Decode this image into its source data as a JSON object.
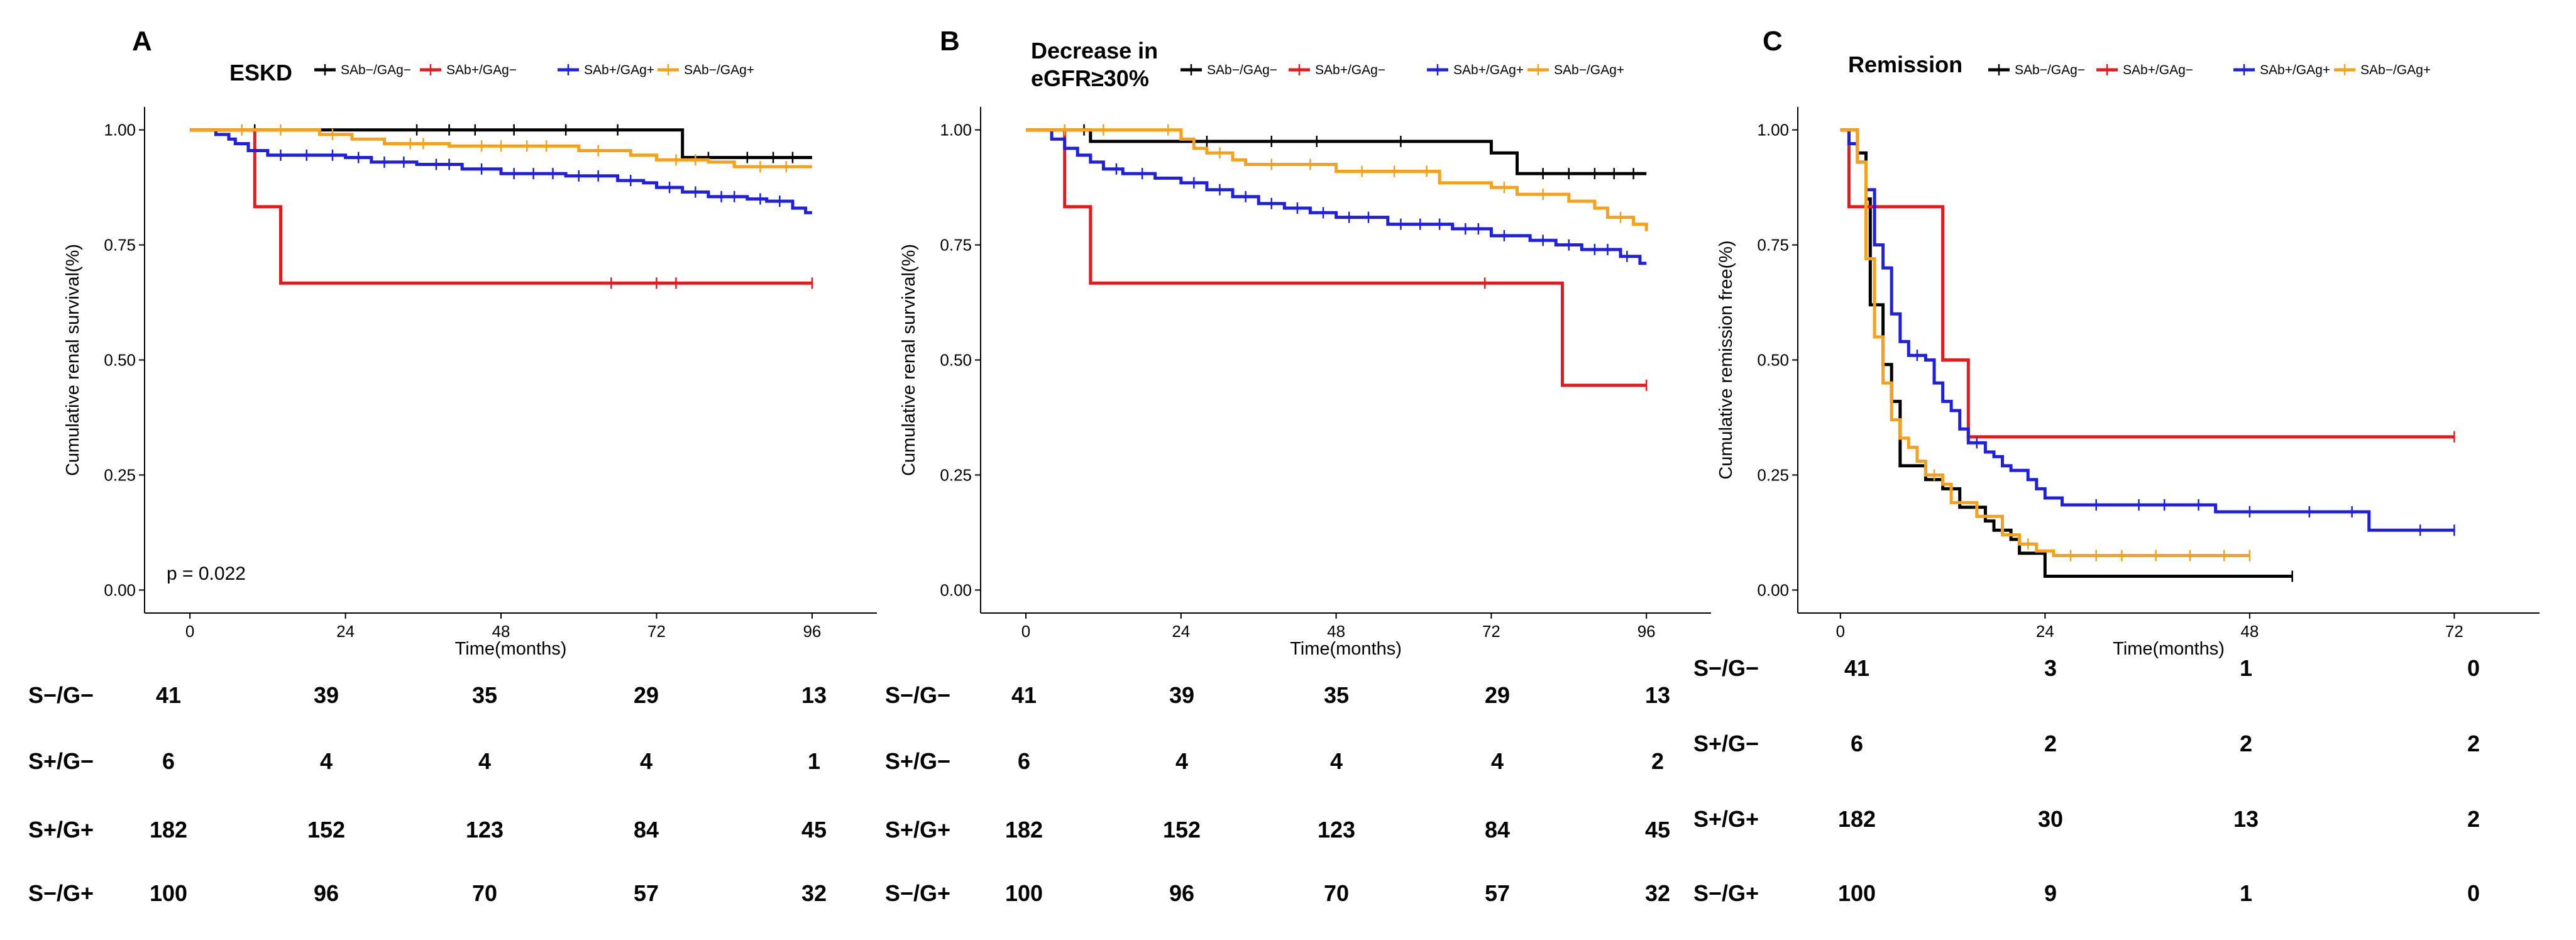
{
  "chart_data": [
    {
      "type": "line",
      "panel": "A",
      "title": "ESKD",
      "title_lines": [
        "ESKD"
      ],
      "xlabel": "Time(months)",
      "ylabel": "Cumulative renal survival(%)",
      "xlim": [
        -7,
        106
      ],
      "ylim": [
        -0.05,
        1.05
      ],
      "xticks": [
        0,
        24,
        48,
        72,
        96
      ],
      "yticks": [
        0.0,
        0.25,
        0.5,
        0.75,
        1.0
      ],
      "ytick_labels": [
        "0.00",
        "0.25",
        "0.50",
        "0.75",
        "1.00"
      ],
      "annotation": "p = 0.022",
      "legend": [
        "SAb−/GAg−",
        "SAb+/GAg−",
        "SAb+/GAg+",
        "SAb−/GAg+"
      ],
      "series": [
        {
          "name": "SAb−/GAg−",
          "color": "#000000",
          "steps": [
            [
              0,
              1.0
            ],
            [
              76,
              0.94
            ],
            [
              96,
              0.94
            ]
          ],
          "censor": [
            10,
            35,
            40,
            44,
            50,
            58,
            66,
            80,
            86,
            90,
            93
          ]
        },
        {
          "name": "SAb+/GAg−",
          "color": "#e41a1c",
          "steps": [
            [
              0,
              1.0
            ],
            [
              10,
              0.833
            ],
            [
              14,
              0.667
            ],
            [
              96,
              0.667
            ]
          ],
          "censor": [
            65,
            72,
            75,
            96
          ]
        },
        {
          "name": "SAb+/GAg+",
          "color": "#1f1fe0",
          "steps": [
            [
              0,
              1.0
            ],
            [
              4,
              0.99
            ],
            [
              6,
              0.98
            ],
            [
              7,
              0.97
            ],
            [
              9,
              0.955
            ],
            [
              12,
              0.945
            ],
            [
              24,
              0.94
            ],
            [
              28,
              0.93
            ],
            [
              35,
              0.925
            ],
            [
              42,
              0.915
            ],
            [
              48,
              0.905
            ],
            [
              58,
              0.9
            ],
            [
              66,
              0.89
            ],
            [
              70,
              0.885
            ],
            [
              72,
              0.875
            ],
            [
              76,
              0.865
            ],
            [
              80,
              0.855
            ],
            [
              86,
              0.85
            ],
            [
              89,
              0.845
            ],
            [
              93,
              0.83
            ],
            [
              95,
              0.82
            ],
            [
              96,
              0.82
            ]
          ],
          "censor": [
            14,
            18,
            22,
            26,
            30,
            33,
            38,
            40,
            45,
            50,
            53,
            56,
            60,
            63,
            68,
            74,
            78,
            82,
            84,
            88,
            91
          ]
        },
        {
          "name": "SAb−/GAg+",
          "color": "#f5a21a",
          "steps": [
            [
              0,
              1.0
            ],
            [
              20,
              0.99
            ],
            [
              25,
              0.98
            ],
            [
              30,
              0.97
            ],
            [
              40,
              0.965
            ],
            [
              60,
              0.955
            ],
            [
              68,
              0.945
            ],
            [
              72,
              0.935
            ],
            [
              80,
              0.93
            ],
            [
              84,
              0.92
            ],
            [
              96,
              0.92
            ]
          ],
          "censor": [
            8,
            14,
            22,
            34,
            36,
            45,
            48,
            52,
            55,
            63,
            75,
            78,
            88,
            92
          ]
        }
      ],
      "risk_table": [
        {
          "label": "S−/G−",
          "counts": [
            "41",
            "39",
            "35",
            "29",
            "13"
          ]
        },
        {
          "label": "S+/G−",
          "counts": [
            "6",
            "4",
            "4",
            "4",
            "1"
          ]
        },
        {
          "label": "S+/G+",
          "counts": [
            "182",
            "152",
            "123",
            "84",
            "45"
          ]
        },
        {
          "label": "S−/G+",
          "counts": [
            "100",
            "96",
            "70",
            "57",
            "32"
          ]
        }
      ]
    },
    {
      "type": "line",
      "panel": "B",
      "title": "Decrease in eGFR≥30%",
      "title_lines": [
        "Decrease in",
        "eGFR≥30%"
      ],
      "xlabel": "Time(months)",
      "ylabel": "Cumulative renal survival(%)",
      "xlim": [
        -7,
        106
      ],
      "ylim": [
        -0.05,
        1.05
      ],
      "xticks": [
        0,
        24,
        48,
        72,
        96
      ],
      "yticks": [
        0.0,
        0.25,
        0.5,
        0.75,
        1.0
      ],
      "ytick_labels": [
        "0.00",
        "0.25",
        "0.50",
        "0.75",
        "1.00"
      ],
      "annotation": "",
      "legend": [
        "SAb−/GAg−",
        "SAb+/GAg−",
        "SAb+/GAg+",
        "SAb−/GAg+"
      ],
      "series": [
        {
          "name": "SAb−/GAg−",
          "color": "#000000",
          "steps": [
            [
              0,
              1.0
            ],
            [
              10,
              0.975
            ],
            [
              72,
              0.95
            ],
            [
              76,
              0.905
            ],
            [
              96,
              0.905
            ]
          ],
          "censor": [
            9,
            28,
            38,
            45,
            58,
            80,
            84,
            88,
            91,
            94
          ]
        },
        {
          "name": "SAb+/GAg−",
          "color": "#e41a1c",
          "steps": [
            [
              0,
              1.0
            ],
            [
              6,
              0.833
            ],
            [
              10,
              0.667
            ],
            [
              83,
              0.445
            ],
            [
              96,
              0.445
            ]
          ],
          "censor": [
            71,
            96
          ]
        },
        {
          "name": "SAb+/GAg+",
          "color": "#1f1fe0",
          "steps": [
            [
              0,
              1.0
            ],
            [
              4,
              0.98
            ],
            [
              6,
              0.96
            ],
            [
              8,
              0.945
            ],
            [
              10,
              0.93
            ],
            [
              12,
              0.915
            ],
            [
              15,
              0.905
            ],
            [
              20,
              0.895
            ],
            [
              24,
              0.885
            ],
            [
              28,
              0.87
            ],
            [
              32,
              0.855
            ],
            [
              36,
              0.84
            ],
            [
              40,
              0.83
            ],
            [
              44,
              0.82
            ],
            [
              48,
              0.81
            ],
            [
              56,
              0.795
            ],
            [
              66,
              0.785
            ],
            [
              72,
              0.77
            ],
            [
              78,
              0.76
            ],
            [
              82,
              0.75
            ],
            [
              86,
              0.74
            ],
            [
              92,
              0.725
            ],
            [
              95,
              0.71
            ],
            [
              96,
              0.71
            ]
          ],
          "censor": [
            14,
            18,
            26,
            30,
            34,
            38,
            42,
            46,
            50,
            53,
            58,
            61,
            64,
            68,
            70,
            74,
            80,
            84,
            88,
            90,
            93
          ]
        },
        {
          "name": "SAb−/GAg+",
          "color": "#f5a21a",
          "steps": [
            [
              0,
              1.0
            ],
            [
              24,
              0.98
            ],
            [
              26,
              0.96
            ],
            [
              28,
              0.95
            ],
            [
              32,
              0.935
            ],
            [
              34,
              0.925
            ],
            [
              48,
              0.91
            ],
            [
              64,
              0.885
            ],
            [
              72,
              0.875
            ],
            [
              76,
              0.86
            ],
            [
              84,
              0.845
            ],
            [
              88,
              0.83
            ],
            [
              90,
              0.81
            ],
            [
              94,
              0.795
            ],
            [
              96,
              0.78
            ]
          ],
          "censor": [
            6,
            12,
            22,
            30,
            38,
            44,
            52,
            57,
            62,
            74,
            80,
            92
          ]
        }
      ],
      "risk_table": [
        {
          "label": "S−/G−",
          "counts": [
            "41",
            "39",
            "35",
            "29",
            "13"
          ]
        },
        {
          "label": "S+/G−",
          "counts": [
            "6",
            "4",
            "4",
            "4",
            "2"
          ]
        },
        {
          "label": "S+/G+",
          "counts": [
            "182",
            "152",
            "123",
            "84",
            "45"
          ]
        },
        {
          "label": "S−/G+",
          "counts": [
            "100",
            "96",
            "70",
            "57",
            "32"
          ]
        }
      ]
    },
    {
      "type": "line",
      "panel": "C",
      "title": "Remission",
      "title_lines": [
        "Remission"
      ],
      "xlabel": "Time(months)",
      "ylabel": "Cumulative remission free(%)",
      "xlim": [
        -5,
        82
      ],
      "ylim": [
        -0.05,
        1.05
      ],
      "xticks": [
        0,
        24,
        48,
        72
      ],
      "yticks": [
        0.0,
        0.25,
        0.5,
        0.75,
        1.0
      ],
      "ytick_labels": [
        "0.00",
        "0.25",
        "0.50",
        "0.75",
        "1.00"
      ],
      "annotation": "",
      "legend": [
        "SAb−/GAg−",
        "SAb+/GAg−",
        "SAb+/GAg+",
        "SAb−/GAg+"
      ],
      "series": [
        {
          "name": "SAb−/GAg−",
          "color": "#000000",
          "steps": [
            [
              0,
              1.0
            ],
            [
              2,
              0.95
            ],
            [
              3,
              0.85
            ],
            [
              3.5,
              0.62
            ],
            [
              5,
              0.49
            ],
            [
              6,
              0.41
            ],
            [
              7,
              0.27
            ],
            [
              10,
              0.24
            ],
            [
              12,
              0.22
            ],
            [
              14,
              0.18
            ],
            [
              17,
              0.15
            ],
            [
              18,
              0.13
            ],
            [
              20,
              0.11
            ],
            [
              21,
              0.08
            ],
            [
              24,
              0.03
            ],
            [
              53,
              0.03
            ]
          ],
          "censor": [
            53
          ]
        },
        {
          "name": "SAb+/GAg−",
          "color": "#e41a1c",
          "steps": [
            [
              0,
              1.0
            ],
            [
              1,
              0.833
            ],
            [
              12,
              0.5
            ],
            [
              15,
              0.333
            ],
            [
              72,
              0.333
            ]
          ],
          "censor": [
            72
          ]
        },
        {
          "name": "SAb+/GAg+",
          "color": "#1f1fe0",
          "steps": [
            [
              0,
              1.0
            ],
            [
              1,
              0.97
            ],
            [
              2,
              0.93
            ],
            [
              3,
              0.87
            ],
            [
              4,
              0.75
            ],
            [
              5,
              0.7
            ],
            [
              6,
              0.6
            ],
            [
              7,
              0.54
            ],
            [
              8,
              0.51
            ],
            [
              10,
              0.5
            ],
            [
              11,
              0.45
            ],
            [
              12,
              0.41
            ],
            [
              13,
              0.39
            ],
            [
              14,
              0.35
            ],
            [
              15,
              0.32
            ],
            [
              17,
              0.3
            ],
            [
              18,
              0.29
            ],
            [
              19,
              0.27
            ],
            [
              20,
              0.26
            ],
            [
              22,
              0.24
            ],
            [
              23,
              0.22
            ],
            [
              24,
              0.2
            ],
            [
              26,
              0.185
            ],
            [
              44,
              0.17
            ],
            [
              62,
              0.13
            ],
            [
              72,
              0.13
            ]
          ],
          "censor": [
            9,
            16,
            30,
            35,
            38,
            42,
            48,
            55,
            60,
            68,
            72
          ]
        },
        {
          "name": "SAb−/GAg+",
          "color": "#f5a21a",
          "steps": [
            [
              0,
              1.0
            ],
            [
              2,
              0.93
            ],
            [
              3,
              0.72
            ],
            [
              4,
              0.55
            ],
            [
              5,
              0.45
            ],
            [
              6,
              0.37
            ],
            [
              7,
              0.33
            ],
            [
              8,
              0.31
            ],
            [
              9,
              0.28
            ],
            [
              10,
              0.25
            ],
            [
              12,
              0.23
            ],
            [
              13,
              0.19
            ],
            [
              16,
              0.16
            ],
            [
              19,
              0.12
            ],
            [
              21,
              0.1
            ],
            [
              23,
              0.085
            ],
            [
              25,
              0.075
            ],
            [
              48,
              0.075
            ]
          ],
          "censor": [
            11,
            22,
            27,
            30,
            33,
            37,
            41,
            45,
            48
          ]
        }
      ],
      "risk_table": [
        {
          "label": "S−/G−",
          "counts": [
            "41",
            "3",
            "1",
            "0"
          ]
        },
        {
          "label": "S+/G−",
          "counts": [
            "6",
            "2",
            "2",
            "2"
          ]
        },
        {
          "label": "S+/G+",
          "counts": [
            "182",
            "30",
            "13",
            "2"
          ]
        },
        {
          "label": "S−/G+",
          "counts": [
            "100",
            "9",
            "1",
            "0"
          ]
        }
      ]
    }
  ]
}
